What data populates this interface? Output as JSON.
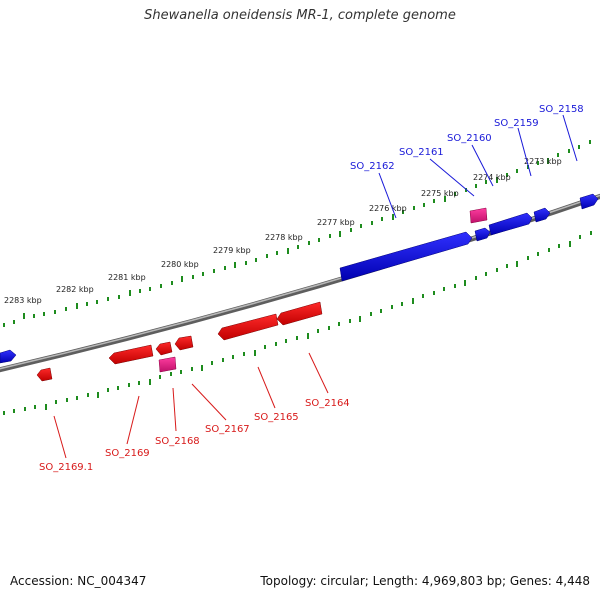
{
  "title": "Shewanella oneidensis MR-1, complete genome",
  "footer": {
    "accession": "Accession: NC_004347",
    "summary": "Topology: circular; Length: 4,969,803 bp; Genes: 4,448"
  },
  "colors": {
    "forward_gene": "#1010e0",
    "reverse_gene": "#ee1010",
    "pseudo_gene": "#e0207a",
    "ticks": "#1e8c1e",
    "backbone": "#7a7a7a"
  },
  "scale_labels": [
    "2283 kbp",
    "2282 kbp",
    "2281 kbp",
    "2280 kbp",
    "2279 kbp",
    "2278 kbp",
    "2277 kbp",
    "2276 kbp",
    "2275 kbp",
    "2274 kbp",
    "2273 kbp"
  ],
  "forward_genes": [
    "SO_2162",
    "SO_2161",
    "SO_2160",
    "SO_2159",
    "SO_2158"
  ],
  "reverse_genes": [
    "SO_2169.1",
    "SO_2169",
    "SO_2168",
    "SO_2167",
    "SO_2165",
    "SO_2164"
  ]
}
